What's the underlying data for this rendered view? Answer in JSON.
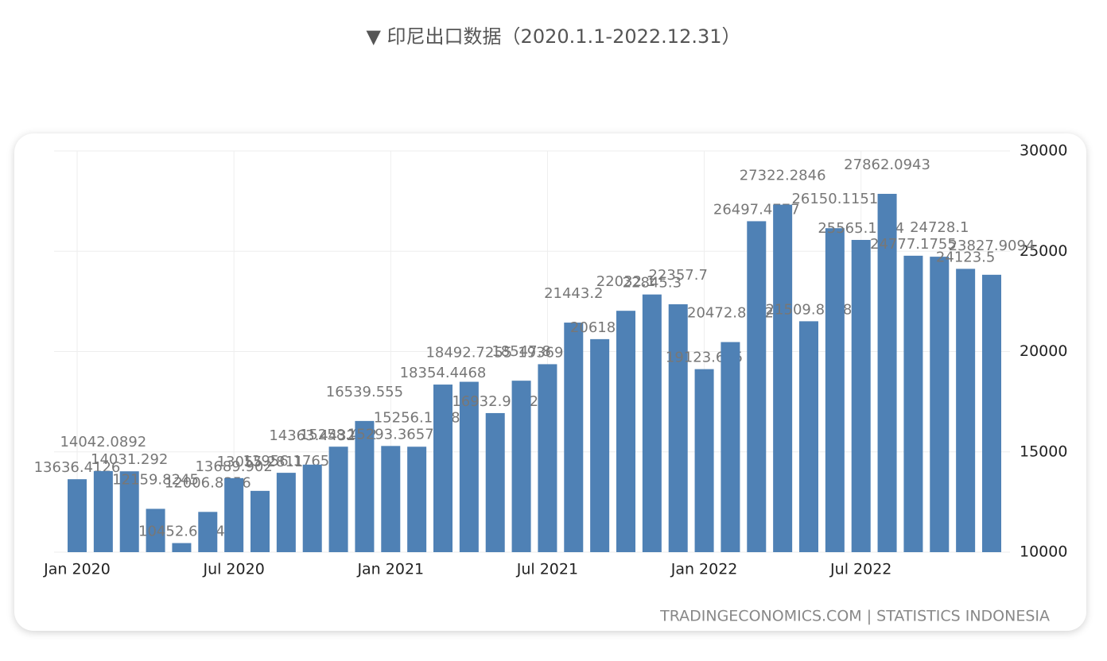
{
  "page_title": "▼ 印尼出口数据（2020.1.1-2022.12.31）",
  "chart_data": {
    "type": "bar",
    "categories": [
      "Jan 2020",
      null,
      null,
      null,
      null,
      null,
      "Jul 2020",
      null,
      null,
      null,
      null,
      null,
      "Jan 2021",
      null,
      null,
      null,
      null,
      null,
      "Jul 2021",
      null,
      null,
      null,
      null,
      null,
      "Jan 2022",
      null,
      null,
      null,
      null,
      null,
      "Jul 2022",
      null,
      null,
      null,
      null,
      null
    ],
    "values": [
      13636.4126,
      14042.0892,
      14031.292,
      12159.8245,
      10452.6254,
      12006.8356,
      13689.902,
      13055.2811,
      13956.1765,
      14363.4432,
      15258.422,
      16539.555,
      15293.3657,
      15256.1658,
      18354.4468,
      18492.7255,
      16932.9242,
      18547.8,
      19369.6,
      21443.2,
      20618.8,
      22032.1,
      22845.3,
      22357.7,
      19123.695,
      20472.8842,
      26497.4777,
      27322.2846,
      21509.8258,
      26150.1151,
      25565.1964,
      27862.0943,
      24777.1755,
      24728.1,
      24123.5,
      23827.9094
    ],
    "color": "#4f81b5",
    "ylim": [
      10000,
      30000
    ],
    "yticks": [
      10000,
      15000,
      20000,
      25000,
      30000
    ],
    "grid": true,
    "source": "TRADINGECONOMICS.COM | STATISTICS INDONESIA"
  }
}
